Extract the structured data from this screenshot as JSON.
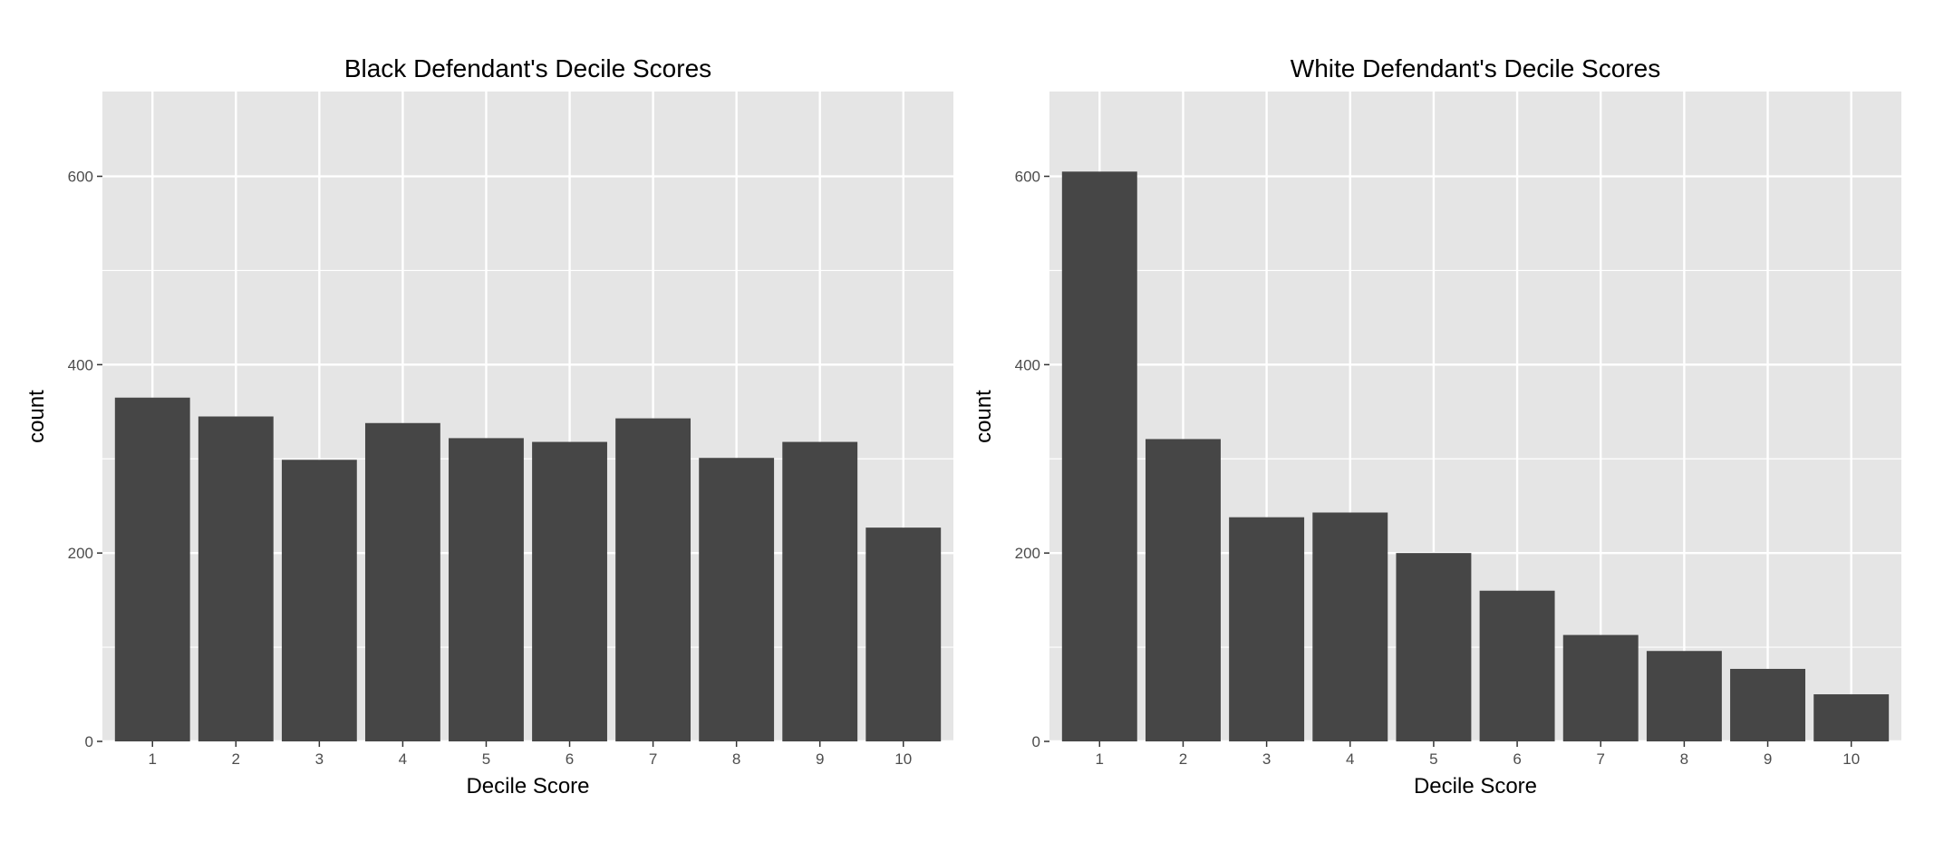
{
  "colors": {
    "panel_background": "#e5e5e5",
    "grid": "#ffffff",
    "bar_fill": "#464646",
    "tick_text": "#4d4d4d",
    "tick_mark": "#333333",
    "text": "#000000"
  },
  "chart_data": [
    {
      "type": "bar",
      "title": "Black Defendant's Decile Scores",
      "xlabel": "Decile Score",
      "ylabel": "count",
      "categories": [
        "1",
        "2",
        "3",
        "4",
        "5",
        "6",
        "7",
        "8",
        "9",
        "10"
      ],
      "values": [
        365,
        345,
        299,
        338,
        322,
        318,
        343,
        301,
        318,
        227
      ],
      "ylim": [
        0,
        690
      ],
      "yticks": [
        0,
        200,
        400,
        600
      ],
      "grid": true,
      "legend": "none"
    },
    {
      "type": "bar",
      "title": "White Defendant's Decile Scores",
      "xlabel": "Decile Score",
      "ylabel": "count",
      "categories": [
        "1",
        "2",
        "3",
        "4",
        "5",
        "6",
        "7",
        "8",
        "9",
        "10"
      ],
      "values": [
        605,
        321,
        238,
        243,
        200,
        160,
        113,
        96,
        77,
        50
      ],
      "ylim": [
        0,
        690
      ],
      "yticks": [
        0,
        200,
        400,
        600
      ],
      "grid": true,
      "legend": "none"
    }
  ]
}
